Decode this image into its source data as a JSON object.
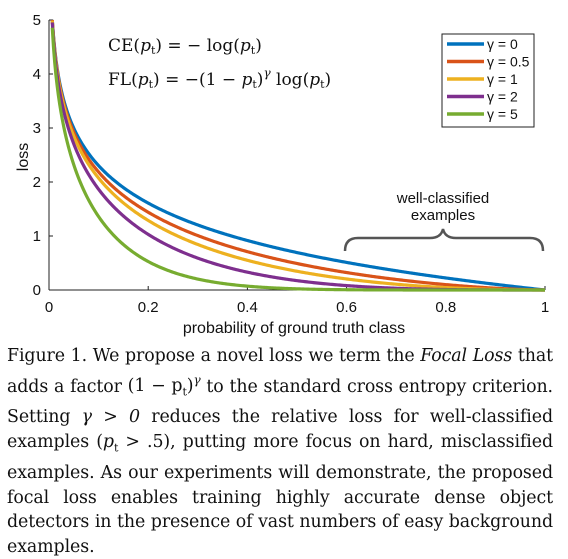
{
  "chart_data": {
    "type": "line",
    "xlabel": "probability of ground truth class",
    "ylabel": "loss",
    "xlim": [
      0,
      1
    ],
    "ylim": [
      0,
      5
    ],
    "xticks": [
      "0",
      "0.2",
      "0.4",
      "0.6",
      "0.8",
      "1"
    ],
    "yticks": [
      "0",
      "1",
      "2",
      "3",
      "4",
      "5"
    ],
    "legend_position": "top-right",
    "series": [
      {
        "name": "γ = 0",
        "gamma": 0,
        "color": "#0072BD",
        "x": [
          0.007,
          0.02,
          0.05,
          0.1,
          0.15,
          0.2,
          0.3,
          0.4,
          0.5,
          0.6,
          0.7,
          0.8,
          0.9,
          1.0
        ],
        "y": [
          4.96,
          3.91,
          3.0,
          2.3,
          1.9,
          1.61,
          1.2,
          0.92,
          0.69,
          0.51,
          0.36,
          0.22,
          0.11,
          0.0
        ]
      },
      {
        "name": "γ = 0.5",
        "gamma": 0.5,
        "color": "#D95319",
        "x": [
          0.007,
          0.02,
          0.05,
          0.1,
          0.15,
          0.2,
          0.3,
          0.4,
          0.5,
          0.6,
          0.7,
          0.8,
          0.9,
          1.0
        ],
        "y": [
          4.94,
          3.87,
          2.92,
          2.18,
          1.75,
          1.44,
          1.01,
          0.71,
          0.49,
          0.32,
          0.2,
          0.1,
          0.03,
          0.0
        ]
      },
      {
        "name": "γ = 1",
        "gamma": 1,
        "color": "#EDB120",
        "x": [
          0.007,
          0.02,
          0.05,
          0.1,
          0.15,
          0.2,
          0.3,
          0.4,
          0.5,
          0.6,
          0.7,
          0.8,
          0.9,
          1.0
        ],
        "y": [
          4.93,
          3.83,
          2.85,
          2.07,
          1.61,
          1.29,
          0.84,
          0.55,
          0.35,
          0.2,
          0.11,
          0.04,
          0.01,
          0.0
        ]
      },
      {
        "name": "γ = 2",
        "gamma": 2,
        "color": "#7E2F8E",
        "x": [
          0.007,
          0.02,
          0.05,
          0.1,
          0.15,
          0.2,
          0.3,
          0.4,
          0.5,
          0.6,
          0.7,
          0.8,
          0.9,
          1.0
        ],
        "y": [
          4.89,
          3.76,
          2.7,
          1.87,
          1.37,
          1.03,
          0.59,
          0.33,
          0.17,
          0.08,
          0.03,
          0.01,
          0.0,
          0.0
        ]
      },
      {
        "name": "γ = 5",
        "gamma": 5,
        "color": "#77AC30",
        "x": [
          0.007,
          0.02,
          0.05,
          0.1,
          0.15,
          0.2,
          0.3,
          0.4,
          0.5,
          0.6,
          0.7,
          0.8,
          0.9,
          1.0
        ],
        "y": [
          4.79,
          3.54,
          2.32,
          1.36,
          0.84,
          0.53,
          0.2,
          0.07,
          0.02,
          0.01,
          0.0,
          0.0,
          0.0,
          0.0
        ]
      }
    ],
    "annotations": {
      "well_classified": "well-classified examples",
      "range": [
        0.6,
        1.0
      ]
    }
  },
  "equations": {
    "ce": {
      "lhs": "CE",
      "pt": "p",
      "sub": "t",
      "eq": ") = − log(",
      "close": ")"
    },
    "fl": {
      "lhs": "FL",
      "pt": "p",
      "sub": "t",
      "eq": ") = −(1 − ",
      "gamma": "γ",
      "log": " log("
    }
  },
  "caption": {
    "label": "Figure 1.",
    "t1": " We propose a novel loss we term the ",
    "focal": "Focal Loss",
    "t2": " that adds a factor ",
    "factor": "(1 − p",
    "factor_sub": "t",
    "factor_close": ")",
    "factor_sup": "γ",
    "t3": " to the standard cross entropy criterion. Setting ",
    "gamma_cond": "γ > 0",
    "t4": " reduces the relative loss for well-classified examples (",
    "pt_cond": "p",
    "pt_cond_sub": "t",
    "pt_cond_rest": " > .5",
    "t5": "), putting more focus on hard, misclassified examples. As our experiments will demonstrate, the proposed focal loss enables training highly accurate dense object detectors in the presence of vast numbers of easy background examples."
  }
}
